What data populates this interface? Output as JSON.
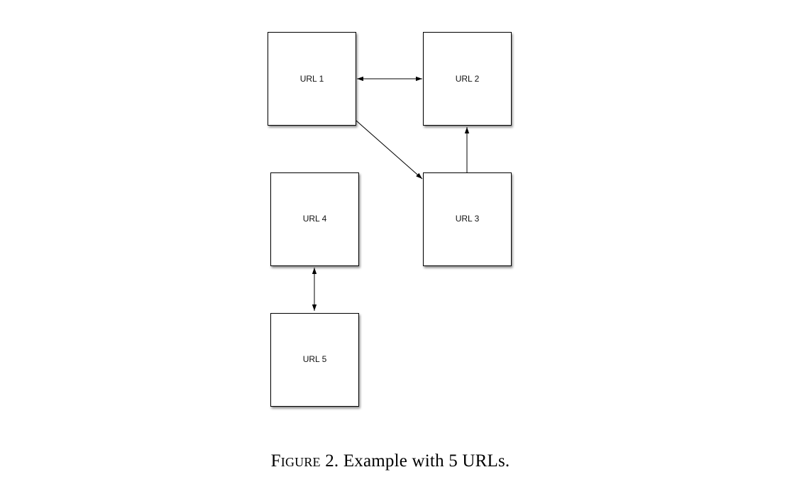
{
  "diagram": {
    "nodes": [
      {
        "id": "url1",
        "label": "URL 1"
      },
      {
        "id": "url2",
        "label": "URL 2"
      },
      {
        "id": "url3",
        "label": "URL 3"
      },
      {
        "id": "url4",
        "label": "URL 4"
      },
      {
        "id": "url5",
        "label": "URL 5"
      }
    ],
    "edges": [
      {
        "from": "url1",
        "to": "url2",
        "direction": "both"
      },
      {
        "from": "url1",
        "to": "url3",
        "direction": "forward"
      },
      {
        "from": "url3",
        "to": "url2",
        "direction": "forward"
      },
      {
        "from": "url4",
        "to": "url5",
        "direction": "both"
      }
    ]
  },
  "caption": {
    "label": "Figure",
    "number": "2.",
    "text": "Example with 5 URLs."
  }
}
